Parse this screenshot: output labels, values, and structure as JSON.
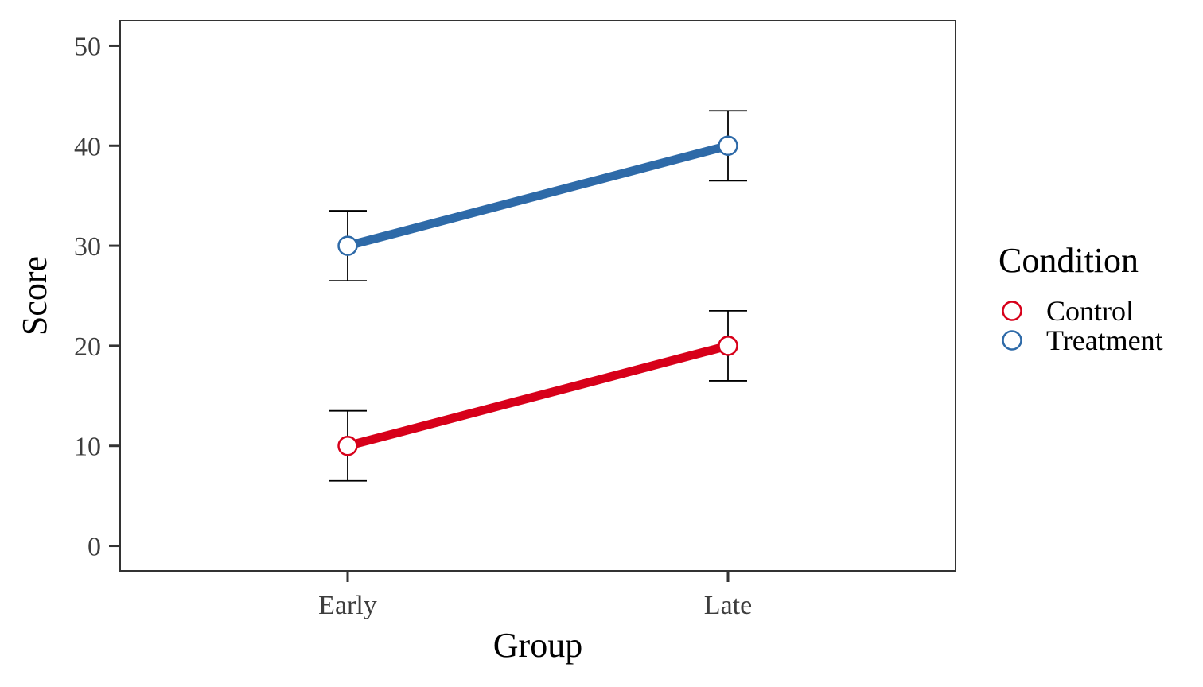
{
  "chart_data": {
    "type": "line",
    "categories": [
      "Early",
      "Late"
    ],
    "series": [
      {
        "name": "Control",
        "values": [
          10,
          20
        ],
        "error_low": [
          6.5,
          16.5
        ],
        "error_high": [
          13.5,
          23.5
        ],
        "color": "#d7001a"
      },
      {
        "name": "Treatment",
        "values": [
          30,
          40
        ],
        "error_low": [
          26.5,
          36.5
        ],
        "error_high": [
          33.5,
          43.5
        ],
        "color": "#2e6aa8"
      }
    ],
    "xlabel": "Group",
    "ylabel": "Score",
    "ylim": [
      -2.5,
      52.5
    ],
    "yticks": [
      0,
      10,
      20,
      30,
      40,
      50
    ],
    "grid": false,
    "legend": {
      "title": "Condition",
      "position": "right"
    }
  }
}
